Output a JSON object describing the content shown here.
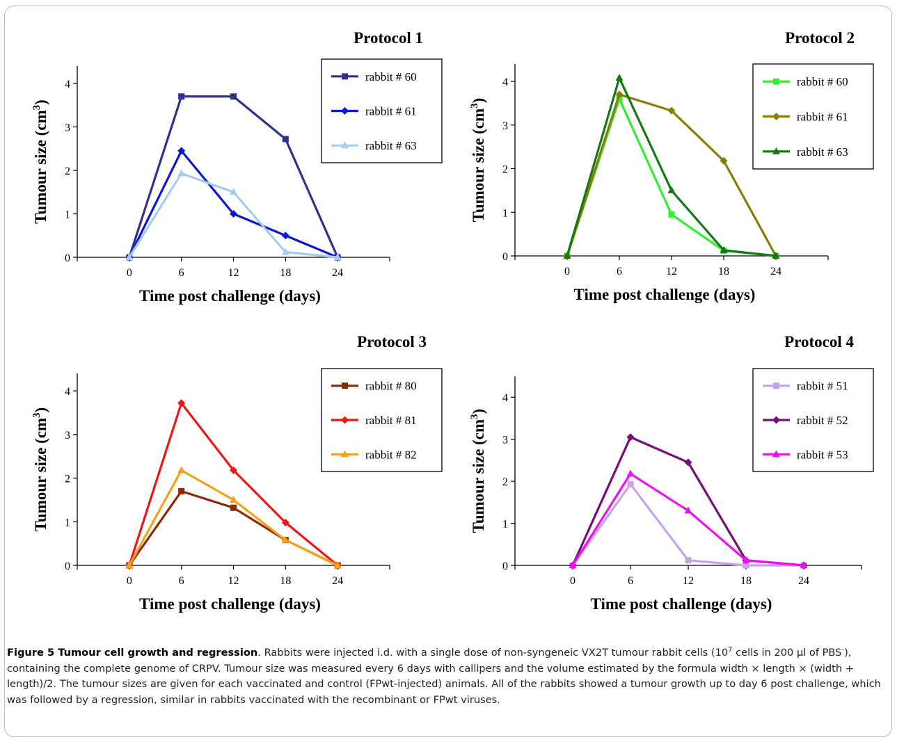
{
  "chart_data": [
    {
      "type": "line",
      "title": "Protocol 1",
      "xlabel": "Time post challenge (days)",
      "ylabel": "Tumour size (cm3)",
      "ylabel_main": "Tumour size (cm",
      "ylabel_sup": "3",
      "ylabel_end": ")",
      "x": [
        0,
        6,
        12,
        18,
        24
      ],
      "x_ticks": [
        "0",
        "6",
        "12",
        "18",
        "24"
      ],
      "y_ticks": [
        "0",
        "1",
        "2",
        "3",
        "4"
      ],
      "ylim": [
        0,
        4.4
      ],
      "xlim": [
        -6,
        30
      ],
      "legend_position": "top-right",
      "series": [
        {
          "name": "rabbit # 60",
          "color": "#2e3192",
          "marker": "square",
          "values": [
            0,
            3.7,
            3.7,
            2.72,
            0
          ]
        },
        {
          "name": "rabbit # 61",
          "color": "#0a17d6",
          "marker": "diamond",
          "values": [
            0,
            2.45,
            1.0,
            0.5,
            0
          ]
        },
        {
          "name": "rabbit # 63",
          "color": "#a4cbf2",
          "marker": "triangle",
          "values": [
            0,
            1.93,
            1.5,
            0.12,
            0
          ]
        }
      ]
    },
    {
      "type": "line",
      "title": "Protocol 2",
      "xlabel": "Time post challenge (days)",
      "ylabel": "Tumour size (cm3)",
      "ylabel_main": "Tumour size (cm",
      "ylabel_sup": "3",
      "ylabel_end": ")",
      "x": [
        0,
        6,
        12,
        18,
        24
      ],
      "x_ticks": [
        "0",
        "6",
        "12",
        "18",
        "24"
      ],
      "y_ticks": [
        "0",
        "1",
        "2",
        "3",
        "4"
      ],
      "ylim": [
        0,
        4.4
      ],
      "xlim": [
        -6,
        30
      ],
      "legend_position": "top-right",
      "series": [
        {
          "name": "rabbit # 60",
          "color": "#33ee33",
          "marker": "square",
          "values": [
            0,
            3.6,
            0.95,
            0.12,
            0
          ]
        },
        {
          "name": "rabbit # 61",
          "color": "#8a7c05",
          "marker": "diamond",
          "values": [
            0,
            3.7,
            3.33,
            2.18,
            0
          ]
        },
        {
          "name": "rabbit # 63",
          "color": "#137a13",
          "marker": "triangle",
          "values": [
            0,
            4.08,
            1.5,
            0.13,
            0
          ]
        }
      ]
    },
    {
      "type": "line",
      "title": "Protocol 3",
      "xlabel": "Time post challenge (days)",
      "ylabel": "Tumour size (cm3)",
      "ylabel_main": "Tumour size (cm",
      "ylabel_sup": "3",
      "ylabel_end": ")",
      "x": [
        0,
        6,
        12,
        18,
        24
      ],
      "x_ticks": [
        "0",
        "6",
        "12",
        "18",
        "24"
      ],
      "y_ticks": [
        "0",
        "1",
        "2",
        "3",
        "4"
      ],
      "ylim": [
        0,
        4.4
      ],
      "xlim": [
        -6,
        30
      ],
      "legend_position": "top-right",
      "series": [
        {
          "name": "rabbit # 80",
          "color": "#8b2a06",
          "marker": "square",
          "values": [
            0,
            1.7,
            1.32,
            0.58,
            0
          ]
        },
        {
          "name": "rabbit # 81",
          "color": "#f01414",
          "marker": "diamond",
          "values": [
            0,
            3.72,
            2.18,
            0.98,
            0
          ]
        },
        {
          "name": "rabbit # 82",
          "color": "#f7a11a",
          "marker": "triangle",
          "values": [
            0,
            2.18,
            1.5,
            0.58,
            0
          ]
        }
      ]
    },
    {
      "type": "line",
      "title": "Protocol 4",
      "xlabel": "Time post challenge (days)",
      "ylabel": "Tumour size (cm3)",
      "ylabel_main": "Tumour size (cm",
      "ylabel_sup": "3",
      "ylabel_end": ")",
      "x": [
        0,
        6,
        12,
        18,
        24
      ],
      "x_ticks": [
        "0",
        "6",
        "12",
        "18",
        "24"
      ],
      "y_ticks": [
        "0",
        "1",
        "2",
        "3",
        "4"
      ],
      "ylim": [
        0,
        4.5
      ],
      "xlim": [
        -6,
        30
      ],
      "legend_position": "top-right",
      "series": [
        {
          "name": "rabbit # 51",
          "color": "#c8a0ee",
          "marker": "square",
          "values": [
            0,
            1.93,
            0.12,
            0,
            0
          ]
        },
        {
          "name": "rabbit # 52",
          "color": "#7a0a78",
          "marker": "diamond",
          "values": [
            0,
            3.05,
            2.45,
            0.12,
            0
          ]
        },
        {
          "name": "rabbit # 53",
          "color": "#ee11ee",
          "marker": "triangle",
          "values": [
            0,
            2.18,
            1.3,
            0.12,
            0
          ]
        }
      ]
    }
  ],
  "caption": {
    "label": "Figure 5 Tumour cell growth and regression",
    "text_1": ". Rabbits were injected i.d. with a single dose of non-syngeneic VX2T tumour rabbit cells (10",
    "sup_1": "7",
    "text_2": " cells in 200 µl of PBS",
    "sup_2": "-",
    "text_3": "), containing the complete genome of CRPV. Tumour size was measured every 6 days with callipers and the volume estimated by the formula width × length × (width + length)/2. The tumour sizes are given for each vaccinated and control (FPwt-injected) animals. All of the rabbits showed a tumour growth up to day 6 post challenge, which was followed by a regression, similar in rabbits vaccinated with the recombinant or FPwt viruses."
  }
}
